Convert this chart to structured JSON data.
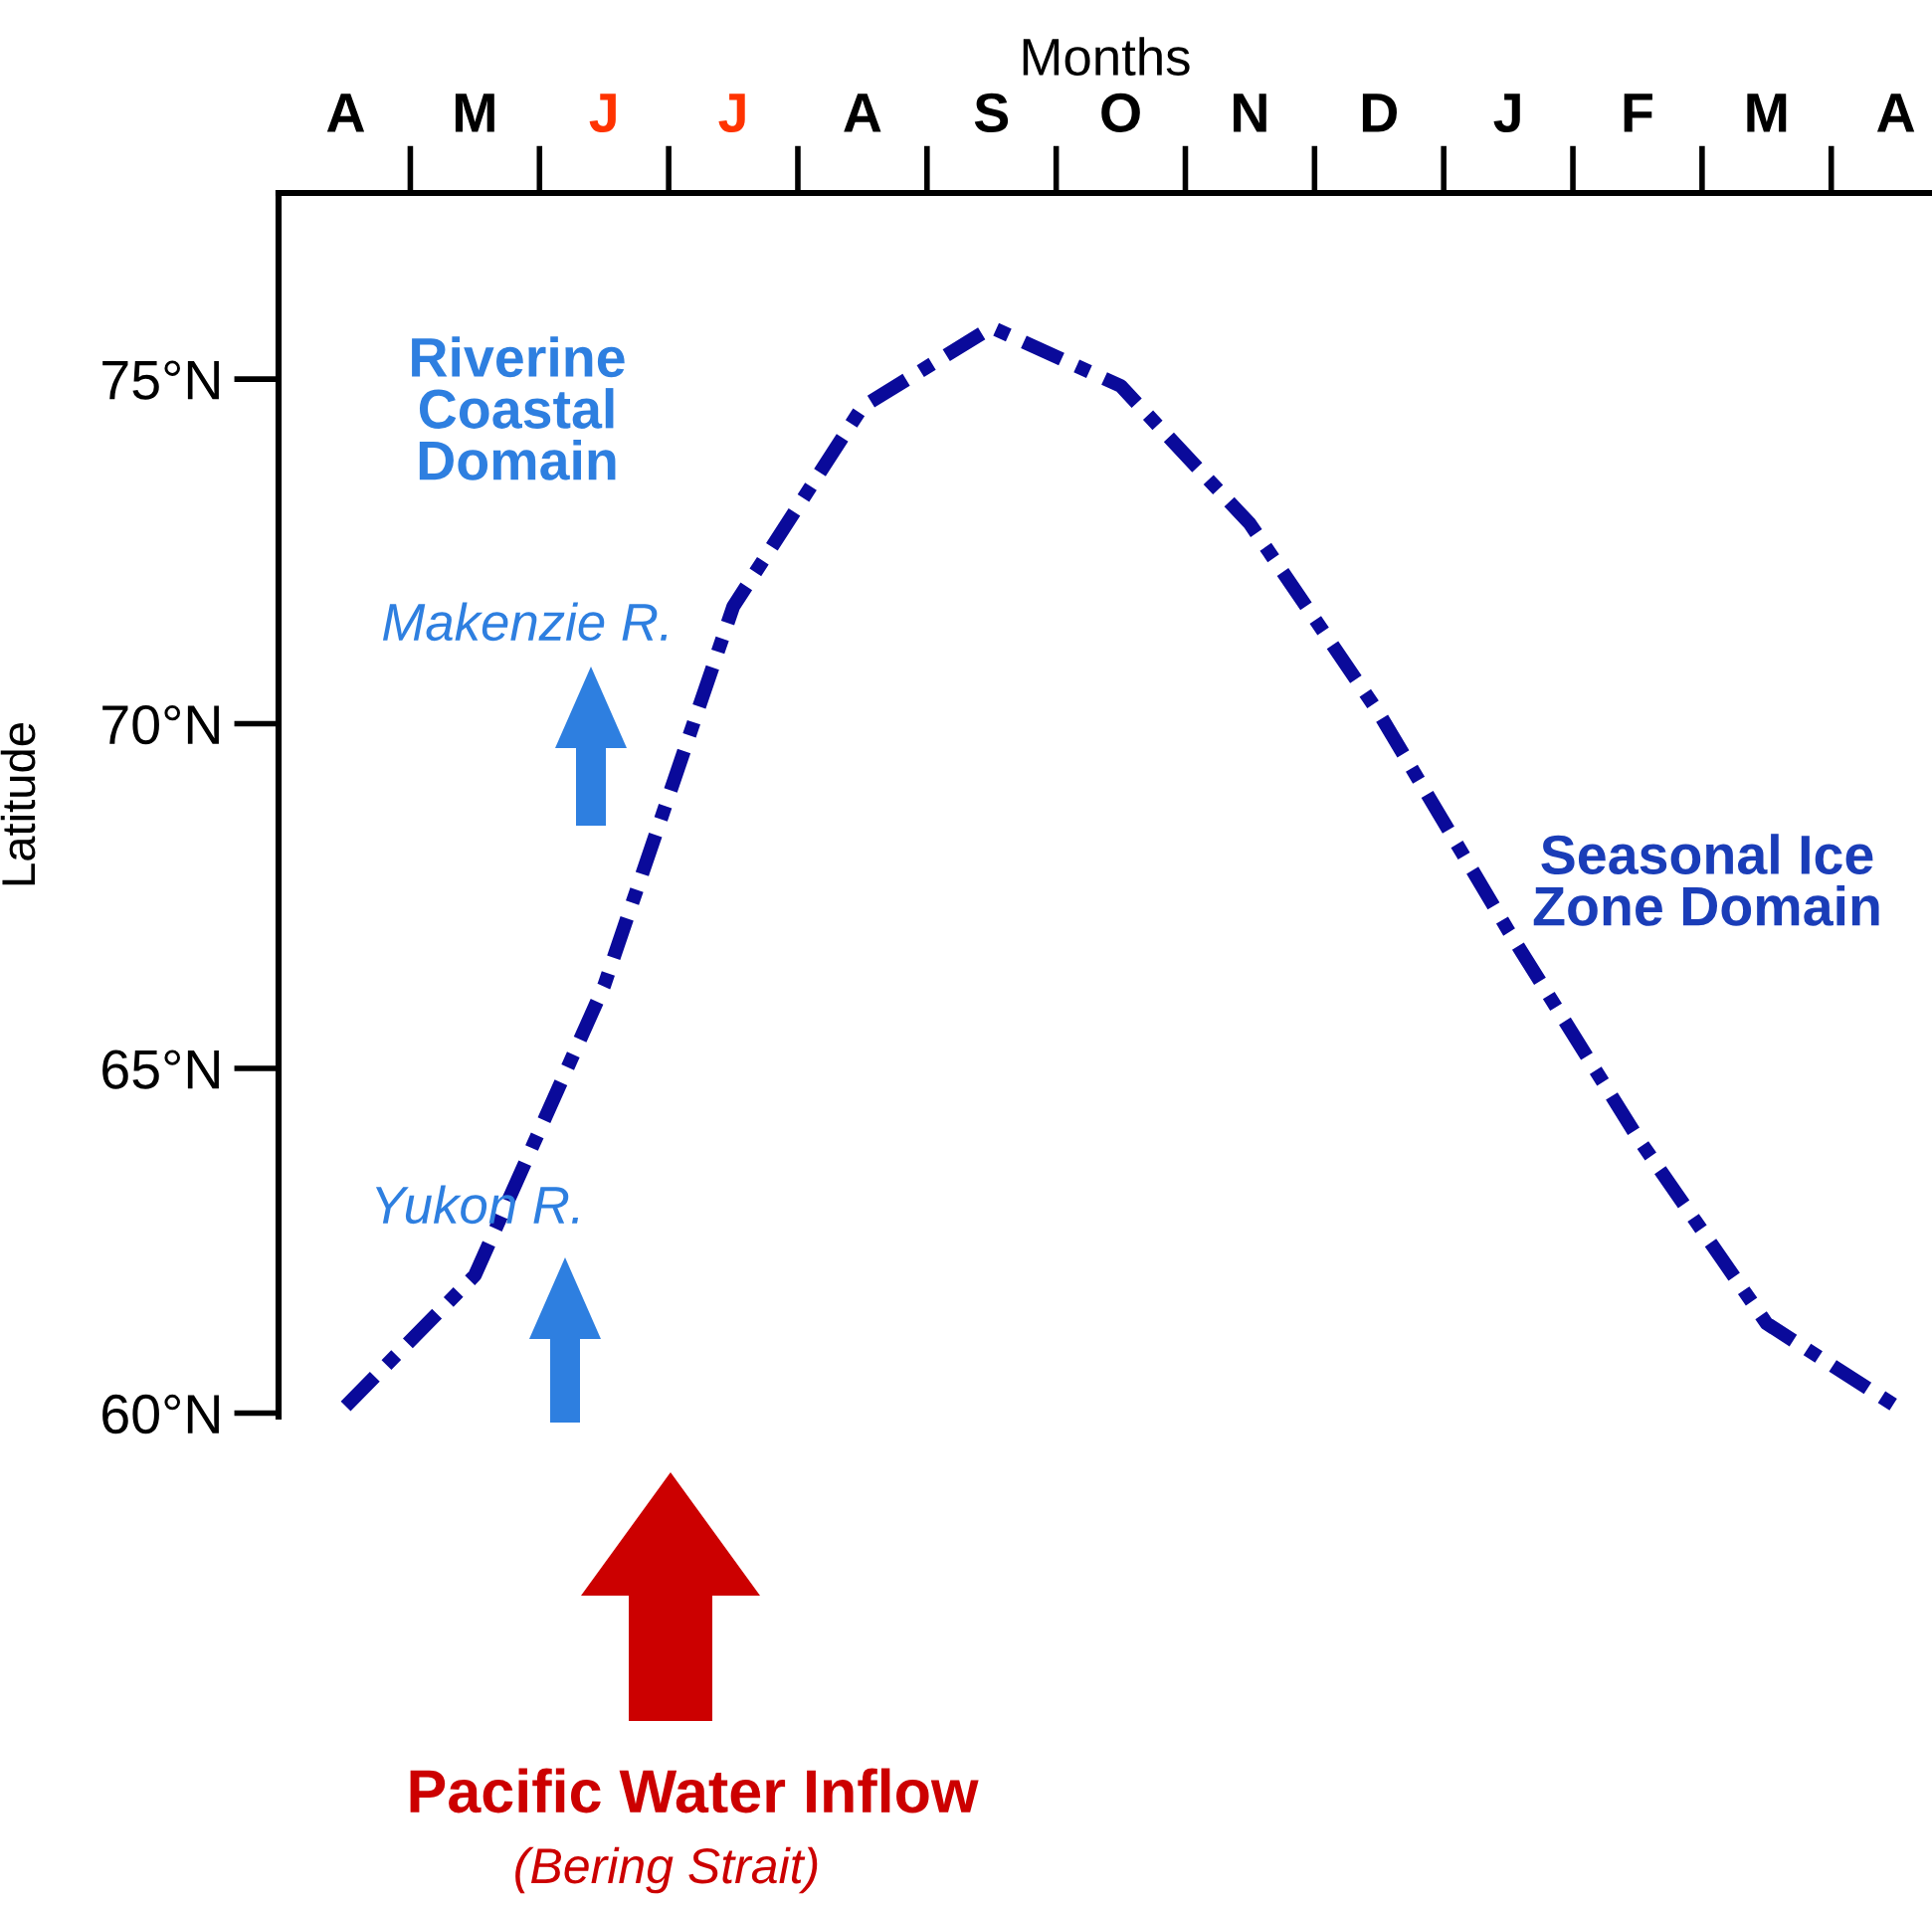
{
  "chart_data": {
    "type": "line",
    "xlabel": "Months",
    "ylabel": "Latitude",
    "categories": [
      "A",
      "M",
      "J",
      "J",
      "A",
      "S",
      "O",
      "N",
      "D",
      "J",
      "F",
      "M",
      "A"
    ],
    "series": [
      {
        "color": "#0a0a9a",
        "values": [
          60.1,
          62.0,
          66.2,
          71.7,
          74.6,
          75.75,
          74.9,
          72.9,
          70.15,
          67.0,
          64.0,
          61.3,
          60.1
        ]
      }
    ],
    "ylim": [
      59.95,
      77.7
    ],
    "yticks": [
      {
        "value": 60,
        "label": "60°N"
      },
      {
        "value": 65,
        "label": "65°N"
      },
      {
        "value": 70,
        "label": "70°N"
      },
      {
        "value": 75,
        "label": "75°N"
      }
    ],
    "line_style": "dashed",
    "grid": false,
    "annotations": [
      "Riverine\nCoastal\nDomain",
      "Makenzie R.",
      "Yukon R.",
      "Seasonal Ice\nZone Domain",
      "Pacific Water Inflow",
      "(Bering Strait)"
    ]
  }
}
